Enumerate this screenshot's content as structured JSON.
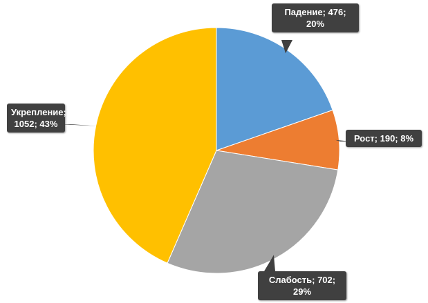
{
  "chart_data": {
    "type": "pie",
    "values": [
      476,
      190,
      702,
      1052
    ],
    "value_labels": [
      "Падение; 476; 20%",
      "Рост; 190; 8%",
      "Слабость; 702; 29%",
      "Укрепление; 1052; 43%"
    ],
    "colors": [
      "#5b9bd5",
      "#ed7d31",
      "#a5a5a5",
      "#ffc000"
    ]
  }
}
